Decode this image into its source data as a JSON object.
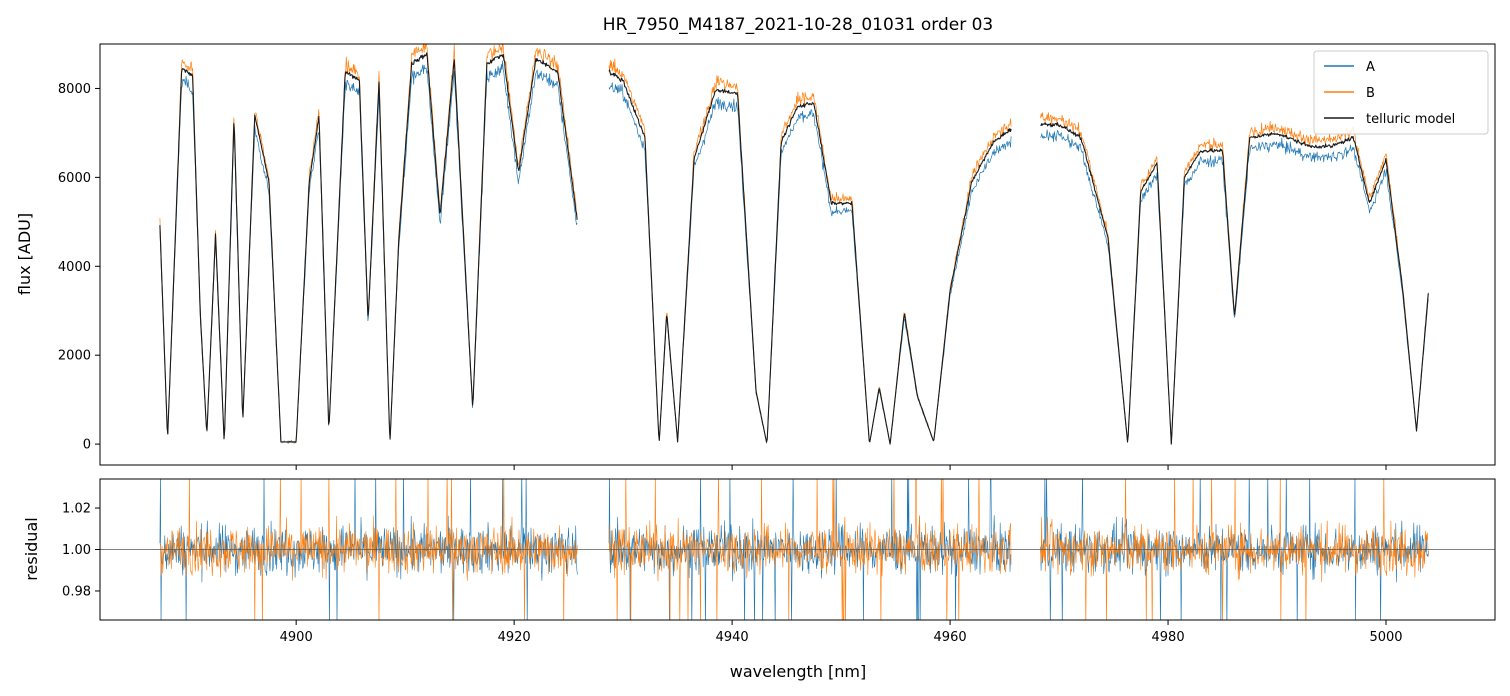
{
  "chart_data": [
    {
      "type": "line",
      "panel": "flux",
      "title": "HR_7950_M4187_2021-10-28_01031  order 03",
      "xlabel": "",
      "ylabel": "flux [ADU]",
      "xlim": [
        4882,
        5010
      ],
      "ylim": [
        -470,
        9000
      ],
      "yticks": [
        0,
        2000,
        4000,
        6000,
        8000
      ],
      "yticklabels": [
        "0",
        "2000",
        "4000",
        "6000",
        "8000"
      ],
      "xticks": [
        4900,
        4920,
        4940,
        4960,
        4980,
        5000
      ],
      "xticklabels_visible": false,
      "legend": {
        "placement": "top-right",
        "entries": [
          "A",
          "B",
          "telluric model"
        ]
      },
      "segments": [
        [
          4887.5,
          4925.8
        ],
        [
          4928.7,
          4965.6
        ],
        [
          4968.3,
          5003.9
        ]
      ],
      "series": [
        {
          "name": "A",
          "color": "#1f77b4",
          "scale": 0.95,
          "x": [
            4887.5,
            4888.2,
            4889.5,
            4890.5,
            4891.2,
            4891.8,
            4892.6,
            4893.4,
            4894.3,
            4895.1,
            4896.2,
            4897.5,
            4898.6,
            4900.0,
            4901.2,
            4902.1,
            4903.0,
            4904.5,
            4905.8,
            4906.6,
            4907.6,
            4908.6,
            4909.4,
            4910.6,
            4912.0,
            4913.2,
            4914.5,
            4916.2,
            4917.5,
            4919.0,
            4920.4,
            4922.0,
            4924.0,
            4925.8,
            4928.7,
            4930.0,
            4932.0,
            4933.3,
            4934.0,
            4935.0,
            4936.5,
            4938.5,
            4940.5,
            4942.2,
            4943.2,
            4944.5,
            4946.0,
            4947.5,
            4949.1,
            4951.0,
            4952.6,
            4953.5,
            4954.5,
            4955.8,
            4957.0,
            4958.5,
            4960.0,
            4962.0,
            4964.0,
            4965.6,
            4968.3,
            4970.0,
            4972.0,
            4974.5,
            4976.3,
            4977.5,
            4979.0,
            4980.3,
            4981.5,
            4983.0,
            4985.0,
            4986.1,
            4987.5,
            4990.0,
            4993.0,
            4995.0,
            4997.0,
            4998.5,
            5000.0,
            5001.5,
            5002.8,
            5003.9
          ],
          "y": [
            5000,
            100,
            8600,
            8400,
            3000,
            200,
            4800,
            0,
            7500,
            500,
            7500,
            6000,
            50,
            50,
            6000,
            7500,
            300,
            8500,
            8300,
            2800,
            8300,
            0,
            4600,
            8700,
            8900,
            5200,
            8800,
            800,
            8700,
            8900,
            6200,
            8800,
            8500,
            5100,
            8500,
            8300,
            7000,
            0,
            3000,
            50,
            6500,
            8100,
            8000,
            1200,
            0,
            6900,
            7700,
            7800,
            5500,
            5500,
            0,
            1300,
            0,
            3000,
            1100,
            50,
            3500,
            6000,
            6900,
            7200,
            7300,
            7300,
            7000,
            4700,
            0,
            5800,
            6400,
            0,
            6100,
            6700,
            6700,
            2900,
            7000,
            7100,
            6800,
            6800,
            7000,
            5500,
            6500,
            3600,
            300,
            3500
          ]
        },
        {
          "name": "B",
          "color": "#ff7f0e",
          "scale": 1.005,
          "x": [
            4887.5,
            4888.2,
            4889.5,
            4890.5,
            4891.2,
            4891.8,
            4892.6,
            4893.4,
            4894.3,
            4895.1,
            4896.2,
            4897.5,
            4898.6,
            4900.0,
            4901.2,
            4902.1,
            4903.0,
            4904.5,
            4905.8,
            4906.6,
            4907.6,
            4908.6,
            4909.4,
            4910.6,
            4912.0,
            4913.2,
            4914.5,
            4916.2,
            4917.5,
            4919.0,
            4920.4,
            4922.0,
            4924.0,
            4925.8,
            4928.7,
            4930.0,
            4932.0,
            4933.3,
            4934.0,
            4935.0,
            4936.5,
            4938.5,
            4940.5,
            4942.2,
            4943.2,
            4944.5,
            4946.0,
            4947.5,
            4949.1,
            4951.0,
            4952.6,
            4953.5,
            4954.5,
            4955.8,
            4957.0,
            4958.5,
            4960.0,
            4962.0,
            4964.0,
            4965.6,
            4968.3,
            4970.0,
            4972.0,
            4974.5,
            4976.3,
            4977.5,
            4979.0,
            4980.3,
            4981.5,
            4983.0,
            4985.0,
            4986.1,
            4987.5,
            4990.0,
            4993.0,
            4995.0,
            4997.0,
            4998.5,
            5000.0,
            5001.5,
            5002.8,
            5003.9
          ],
          "y": [
            5000,
            100,
            8600,
            8400,
            3000,
            200,
            4800,
            0,
            7500,
            500,
            7500,
            6000,
            50,
            50,
            6000,
            7500,
            300,
            8500,
            8300,
            2800,
            8300,
            0,
            4600,
            8700,
            8900,
            5200,
            8800,
            800,
            8700,
            8900,
            6200,
            8800,
            8500,
            5100,
            8500,
            8300,
            7000,
            0,
            3000,
            50,
            6500,
            8100,
            8000,
            1200,
            0,
            6900,
            7700,
            7800,
            5500,
            5500,
            0,
            1300,
            0,
            3000,
            1100,
            50,
            3500,
            6000,
            6900,
            7200,
            7300,
            7300,
            7000,
            4700,
            0,
            5800,
            6400,
            0,
            6100,
            6700,
            6700,
            2900,
            7000,
            7100,
            6800,
            6800,
            7000,
            5500,
            6500,
            3600,
            300,
            3500
          ]
        },
        {
          "name": "telluric model",
          "color": "#1a1a1a",
          "scale": 0.985,
          "x": [
            4887.5,
            4888.2,
            4889.5,
            4890.5,
            4891.2,
            4891.8,
            4892.6,
            4893.4,
            4894.3,
            4895.1,
            4896.2,
            4897.5,
            4898.6,
            4900.0,
            4901.2,
            4902.1,
            4903.0,
            4904.5,
            4905.8,
            4906.6,
            4907.6,
            4908.6,
            4909.4,
            4910.6,
            4912.0,
            4913.2,
            4914.5,
            4916.2,
            4917.5,
            4919.0,
            4920.4,
            4922.0,
            4924.0,
            4925.8,
            4928.7,
            4930.0,
            4932.0,
            4933.3,
            4934.0,
            4935.0,
            4936.5,
            4938.5,
            4940.5,
            4942.2,
            4943.2,
            4944.5,
            4946.0,
            4947.5,
            4949.1,
            4951.0,
            4952.6,
            4953.5,
            4954.5,
            4955.8,
            4957.0,
            4958.5,
            4960.0,
            4962.0,
            4964.0,
            4965.6,
            4968.3,
            4970.0,
            4972.0,
            4974.5,
            4976.3,
            4977.5,
            4979.0,
            4980.3,
            4981.5,
            4983.0,
            4985.0,
            4986.1,
            4987.5,
            4990.0,
            4993.0,
            4995.0,
            4997.0,
            4998.5,
            5000.0,
            5001.5,
            5002.8,
            5003.9
          ],
          "y": [
            5000,
            100,
            8600,
            8400,
            3000,
            200,
            4800,
            0,
            7500,
            500,
            7500,
            6000,
            50,
            50,
            6000,
            7500,
            300,
            8500,
            8300,
            2800,
            8300,
            0,
            4600,
            8700,
            8900,
            5200,
            8800,
            800,
            8700,
            8900,
            6200,
            8800,
            8500,
            5100,
            8500,
            8300,
            7000,
            0,
            3000,
            50,
            6500,
            8100,
            8000,
            1200,
            0,
            6900,
            7700,
            7800,
            5500,
            5500,
            0,
            1300,
            0,
            3000,
            1100,
            50,
            3500,
            6000,
            6900,
            7200,
            7300,
            7300,
            7000,
            4700,
            0,
            5800,
            6400,
            0,
            6100,
            6700,
            6700,
            2900,
            7000,
            7100,
            6800,
            6800,
            7000,
            5500,
            6500,
            3600,
            300,
            3500
          ]
        }
      ]
    },
    {
      "type": "line",
      "panel": "residual",
      "title": "",
      "xlabel": "wavelength [nm]",
      "ylabel": "residual",
      "xlim": [
        4882,
        5010
      ],
      "ylim": [
        0.966,
        1.034
      ],
      "yticks": [
        0.98,
        1.0,
        1.02
      ],
      "yticklabels": [
        "0.98",
        "1.00",
        "1.02"
      ],
      "xticks": [
        4900,
        4920,
        4940,
        4960,
        4980,
        5000
      ],
      "xticklabels": [
        "4900",
        "4920",
        "4940",
        "4960",
        "4980",
        "5000"
      ],
      "reference_line": 1.0,
      "segments": [
        [
          4887.5,
          4925.8
        ],
        [
          4928.7,
          4965.6
        ],
        [
          4968.3,
          5003.9
        ]
      ],
      "series": [
        {
          "name": "A",
          "color": "#1f77b4",
          "center": 1.0,
          "spread": 0.011
        },
        {
          "name": "B",
          "color": "#ff7f0e",
          "center": 1.0,
          "spread": 0.011
        }
      ]
    }
  ]
}
